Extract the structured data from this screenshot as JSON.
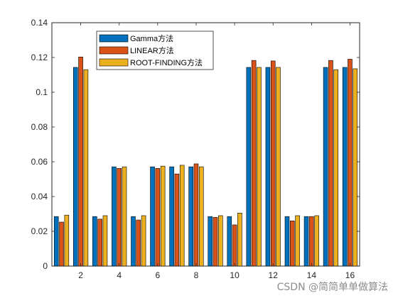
{
  "chart_data": {
    "type": "bar",
    "categories": [
      "1",
      "2",
      "3",
      "4",
      "5",
      "6",
      "7",
      "8",
      "9",
      "10",
      "11",
      "12",
      "13",
      "14",
      "15",
      "16"
    ],
    "x_tick_labels": [
      "2",
      "4",
      "6",
      "8",
      "10",
      "12",
      "14",
      "16"
    ],
    "x_tick_values": [
      2,
      4,
      6,
      8,
      10,
      12,
      14,
      16
    ],
    "y_tick_labels": [
      "0",
      "0.02",
      "0.04",
      "0.06",
      "0.08",
      "0.1",
      "0.12",
      "0.14"
    ],
    "y_tick_values": [
      0,
      0.02,
      0.04,
      0.06,
      0.08,
      0.1,
      0.12,
      0.14
    ],
    "ylim": [
      0,
      0.14
    ],
    "xlim": [
      0.5,
      16.5
    ],
    "grid": false,
    "legend_position": "top-left",
    "series": [
      {
        "name": "Gamma方法",
        "color": "#0072BD",
        "values": [
          0.0285,
          0.1143,
          0.0285,
          0.0571,
          0.0285,
          0.0571,
          0.0571,
          0.0571,
          0.0285,
          0.0285,
          0.1143,
          0.1143,
          0.0285,
          0.0285,
          0.1143,
          0.1143
        ]
      },
      {
        "name": "LINEAR方法",
        "color": "#D95319",
        "values": [
          0.0253,
          0.1203,
          0.027,
          0.0562,
          0.0265,
          0.0562,
          0.053,
          0.0588,
          0.028,
          0.0237,
          0.1183,
          0.118,
          0.026,
          0.0285,
          0.1183,
          0.119
        ]
      },
      {
        "name": "ROOT-FINDING方法",
        "color": "#EDB120",
        "values": [
          0.0293,
          0.113,
          0.029,
          0.0571,
          0.029,
          0.0575,
          0.058,
          0.0571,
          0.029,
          0.0305,
          0.1143,
          0.1143,
          0.029,
          0.029,
          0.113,
          0.1135
        ]
      }
    ]
  },
  "watermark": "CSDN @简简单单做算法"
}
